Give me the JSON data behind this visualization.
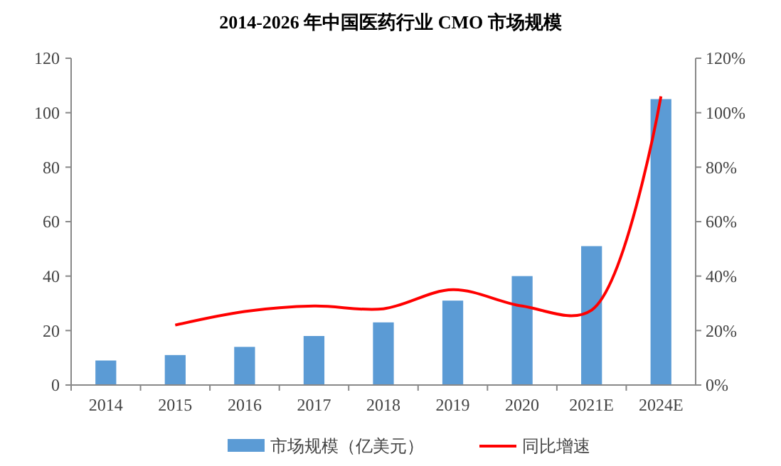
{
  "chart_data": {
    "type": "bar",
    "title": "2014-2026 年中国医药行业 CMO 市场规模",
    "categories": [
      "2014",
      "2015",
      "2016",
      "2017",
      "2018",
      "2019",
      "2020",
      "2021E",
      "2024E"
    ],
    "series": [
      {
        "name": "市场规模（亿美元）",
        "color": "#5b9bd5",
        "values": [
          9,
          11,
          14,
          18,
          23,
          31,
          40,
          51,
          105
        ]
      },
      {
        "name": "同比增速",
        "type": "line",
        "axis": "y2",
        "color": "#ff0000",
        "values": [
          null,
          22,
          27,
          29,
          28,
          35,
          29,
          27.5,
          106
        ]
      }
    ],
    "ylim": [
      0,
      120
    ],
    "yticks": [
      0,
      20,
      40,
      60,
      80,
      100,
      120
    ],
    "y2lim": [
      0,
      120
    ],
    "y2ticks": [
      {
        "value": 0,
        "label": "0%"
      },
      {
        "value": 20,
        "label": "20%"
      },
      {
        "value": 40,
        "label": "40%"
      },
      {
        "value": 60,
        "label": "60%"
      },
      {
        "value": 80,
        "label": "80%"
      },
      {
        "value": 100,
        "label": "100%"
      },
      {
        "value": 120,
        "label": "120%"
      }
    ],
    "legend": "bottom",
    "marker": "none",
    "line_style": "solid"
  }
}
